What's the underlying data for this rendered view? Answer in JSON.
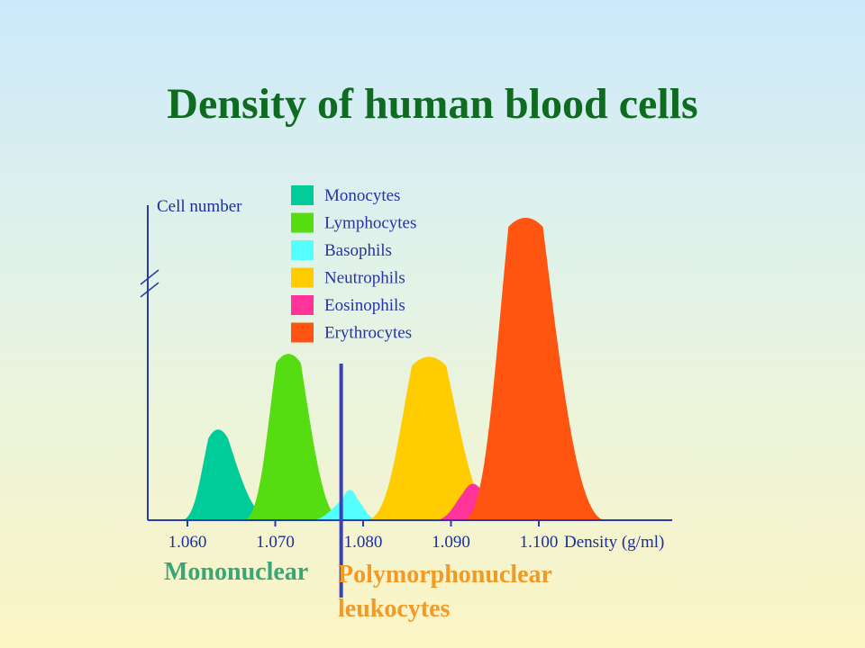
{
  "title": "Density of human blood cells",
  "chart_data": {
    "type": "area",
    "title": "Density of human blood cells",
    "xlabel": "Density (g/ml)",
    "ylabel": "Cell number",
    "xlim": [
      1.0565,
      1.1145
    ],
    "y_axis_break": true,
    "x_ticks": [
      "1.060",
      "1.070",
      "1.080",
      "1.090",
      "1.100"
    ],
    "x_tick_values": [
      1.06,
      1.07,
      1.08,
      1.09,
      1.1
    ],
    "legend_position": "top-center",
    "series": [
      {
        "name": "Monocytes",
        "color": "#00cc99",
        "peak_density": 1.0635,
        "range": [
          1.0595,
          1.0695
        ],
        "relative_height": 0.3
      },
      {
        "name": "Lymphocytes",
        "color": "#55dd11",
        "peak_density": 1.0715,
        "range": [
          1.0665,
          1.0775
        ],
        "relative_height": 0.55
      },
      {
        "name": "Basophils",
        "color": "#55ffff",
        "peak_density": 1.0785,
        "range": [
          1.0745,
          1.0815
        ],
        "relative_height": 0.1
      },
      {
        "name": "Neutrophils",
        "color": "#ffcc00",
        "peak_density": 1.0875,
        "range": [
          1.0805,
          1.0955
        ],
        "relative_height": 0.54
      },
      {
        "name": "Eosinophils",
        "color": "#ff3399",
        "peak_density": 1.0925,
        "range": [
          1.0885,
          1.0965
        ],
        "relative_height": 0.12
      },
      {
        "name": "Erythrocytes",
        "color": "#ff5511",
        "peak_density": 1.0985,
        "range": [
          1.0915,
          1.1075
        ],
        "relative_height": 1.0
      }
    ],
    "divider_density": 1.0775,
    "groups": {
      "left": "Mononuclear",
      "right_line1": "Polymorphonuclear",
      "right_line2": "leukocytes"
    }
  }
}
